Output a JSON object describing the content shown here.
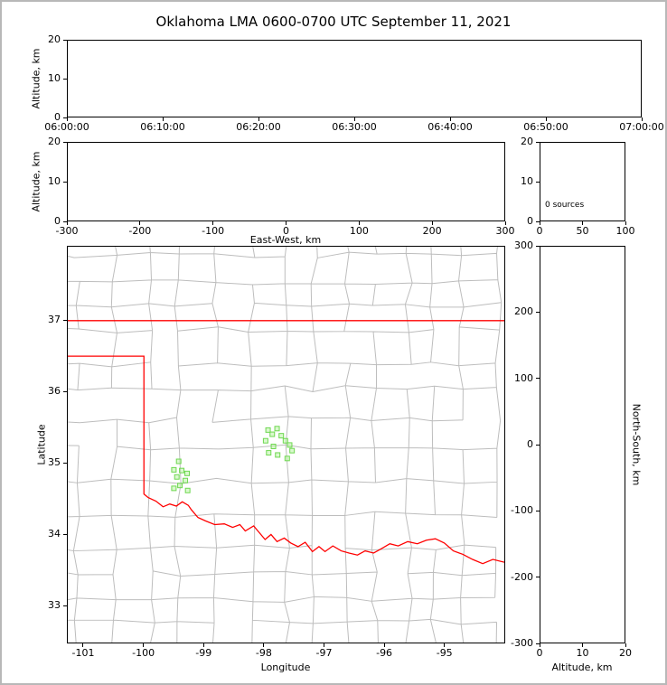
{
  "figure": {
    "title": "Oklahoma LMA 0600-0700 UTC September 11, 2021"
  },
  "colors": {
    "background": "#ffffff",
    "frame": "#b8b8b8",
    "axis": "#000000",
    "county_lines": "#bdbdbd",
    "state_border": "#ff0000",
    "source_marker_edge": "#6ed750",
    "source_marker_fill": "#b6f39e"
  },
  "chart_data": [
    {
      "id": "time_height",
      "type": "scatter",
      "title": "",
      "xlabel": "",
      "ylabel": "Altitude, km",
      "xticks": [
        "06:00:00",
        "06:10:00",
        "06:20:00",
        "06:30:00",
        "06:40:00",
        "06:50:00",
        "07:00:00"
      ],
      "yticks": [
        0,
        10,
        20
      ],
      "ylim": [
        0,
        20
      ],
      "grid": false,
      "points": []
    },
    {
      "id": "ew_height",
      "type": "scatter",
      "title": "",
      "xlabel": "East-West, km",
      "ylabel": "Altitude, km",
      "xticks": [
        -300,
        -200,
        -100,
        0,
        100,
        200,
        300
      ],
      "yticks": [
        0,
        10,
        20
      ],
      "xlim": [
        -300,
        300
      ],
      "ylim": [
        0,
        20
      ],
      "grid": false,
      "points": []
    },
    {
      "id": "alt_histogram",
      "type": "line",
      "title": "",
      "xlabel": "",
      "ylabel": "",
      "xticks": [
        0,
        50,
        100
      ],
      "yticks": [
        0,
        10,
        20
      ],
      "xlim": [
        0,
        100
      ],
      "ylim": [
        0,
        20
      ],
      "grid": false,
      "annotation": "0 sources",
      "points": []
    },
    {
      "id": "plan_view_map",
      "type": "scatter",
      "title": "",
      "xlabel": "Longitude",
      "ylabel": "Latitude",
      "xticks": [
        -101,
        -100,
        -99,
        -98,
        -97,
        -96,
        -95
      ],
      "yticks": [
        33,
        34,
        35,
        36,
        37
      ],
      "xlim": [
        -101.27,
        -93.99
      ],
      "ylim": [
        32.47,
        38.04
      ],
      "grid": false,
      "marker": "square",
      "points": [
        [
          -99.42,
          35.02
        ],
        [
          -99.5,
          34.9
        ],
        [
          -99.37,
          34.89
        ],
        [
          -99.28,
          34.85
        ],
        [
          -99.45,
          34.8
        ],
        [
          -99.31,
          34.75
        ],
        [
          -99.4,
          34.68
        ],
        [
          -99.5,
          34.64
        ],
        [
          -99.27,
          34.61
        ],
        [
          -97.93,
          35.46
        ],
        [
          -97.78,
          35.48
        ],
        [
          -97.86,
          35.4
        ],
        [
          -97.71,
          35.38
        ],
        [
          -97.97,
          35.31
        ],
        [
          -97.64,
          35.31
        ],
        [
          -97.84,
          35.23
        ],
        [
          -97.57,
          35.25
        ],
        [
          -97.92,
          35.14
        ],
        [
          -97.77,
          35.11
        ],
        [
          -97.53,
          35.17
        ],
        [
          -97.61,
          35.06
        ]
      ],
      "state_border": [
        {
          "name": "kansas-oklahoma-line",
          "points": [
            [
              -101.27,
              37.0
            ],
            [
              -93.99,
              37.0
            ]
          ]
        },
        {
          "name": "oklahoma-texas-red-river-border",
          "points": [
            [
              -101.27,
              36.5
            ],
            [
              -100.0,
              36.5
            ],
            [
              -100.0,
              34.56
            ],
            [
              -99.93,
              34.51
            ],
            [
              -99.8,
              34.46
            ],
            [
              -99.68,
              34.38
            ],
            [
              -99.57,
              34.42
            ],
            [
              -99.46,
              34.39
            ],
            [
              -99.36,
              34.45
            ],
            [
              -99.26,
              34.4
            ],
            [
              -99.21,
              34.34
            ],
            [
              -99.1,
              34.23
            ],
            [
              -98.97,
              34.18
            ],
            [
              -98.82,
              34.13
            ],
            [
              -98.66,
              34.14
            ],
            [
              -98.52,
              34.09
            ],
            [
              -98.4,
              34.13
            ],
            [
              -98.31,
              34.04
            ],
            [
              -98.17,
              34.11
            ],
            [
              -98.09,
              34.03
            ],
            [
              -97.98,
              33.92
            ],
            [
              -97.88,
              33.99
            ],
            [
              -97.78,
              33.89
            ],
            [
              -97.66,
              33.94
            ],
            [
              -97.55,
              33.87
            ],
            [
              -97.43,
              33.82
            ],
            [
              -97.31,
              33.88
            ],
            [
              -97.19,
              33.75
            ],
            [
              -97.08,
              33.82
            ],
            [
              -96.98,
              33.75
            ],
            [
              -96.85,
              33.83
            ],
            [
              -96.71,
              33.76
            ],
            [
              -96.58,
              33.73
            ],
            [
              -96.44,
              33.7
            ],
            [
              -96.31,
              33.76
            ],
            [
              -96.17,
              33.73
            ],
            [
              -96.04,
              33.79
            ],
            [
              -95.9,
              33.86
            ],
            [
              -95.76,
              33.83
            ],
            [
              -95.6,
              33.89
            ],
            [
              -95.44,
              33.86
            ],
            [
              -95.29,
              33.91
            ],
            [
              -95.14,
              33.93
            ],
            [
              -94.99,
              33.87
            ],
            [
              -94.84,
              33.76
            ],
            [
              -94.68,
              33.71
            ],
            [
              -94.52,
              33.64
            ],
            [
              -94.35,
              33.58
            ],
            [
              -94.18,
              33.64
            ],
            [
              -93.99,
              33.6
            ]
          ]
        }
      ]
    },
    {
      "id": "ns_height",
      "type": "scatter",
      "title": "",
      "xlabel": "Altitude, km",
      "ylabel_right": "North-South, km",
      "xticks": [
        0,
        10,
        20
      ],
      "yticks": [
        300,
        200,
        100,
        0,
        -100,
        -200,
        -300
      ],
      "xlim": [
        0,
        20
      ],
      "ylim": [
        -300,
        300
      ],
      "grid": false,
      "points": []
    }
  ]
}
